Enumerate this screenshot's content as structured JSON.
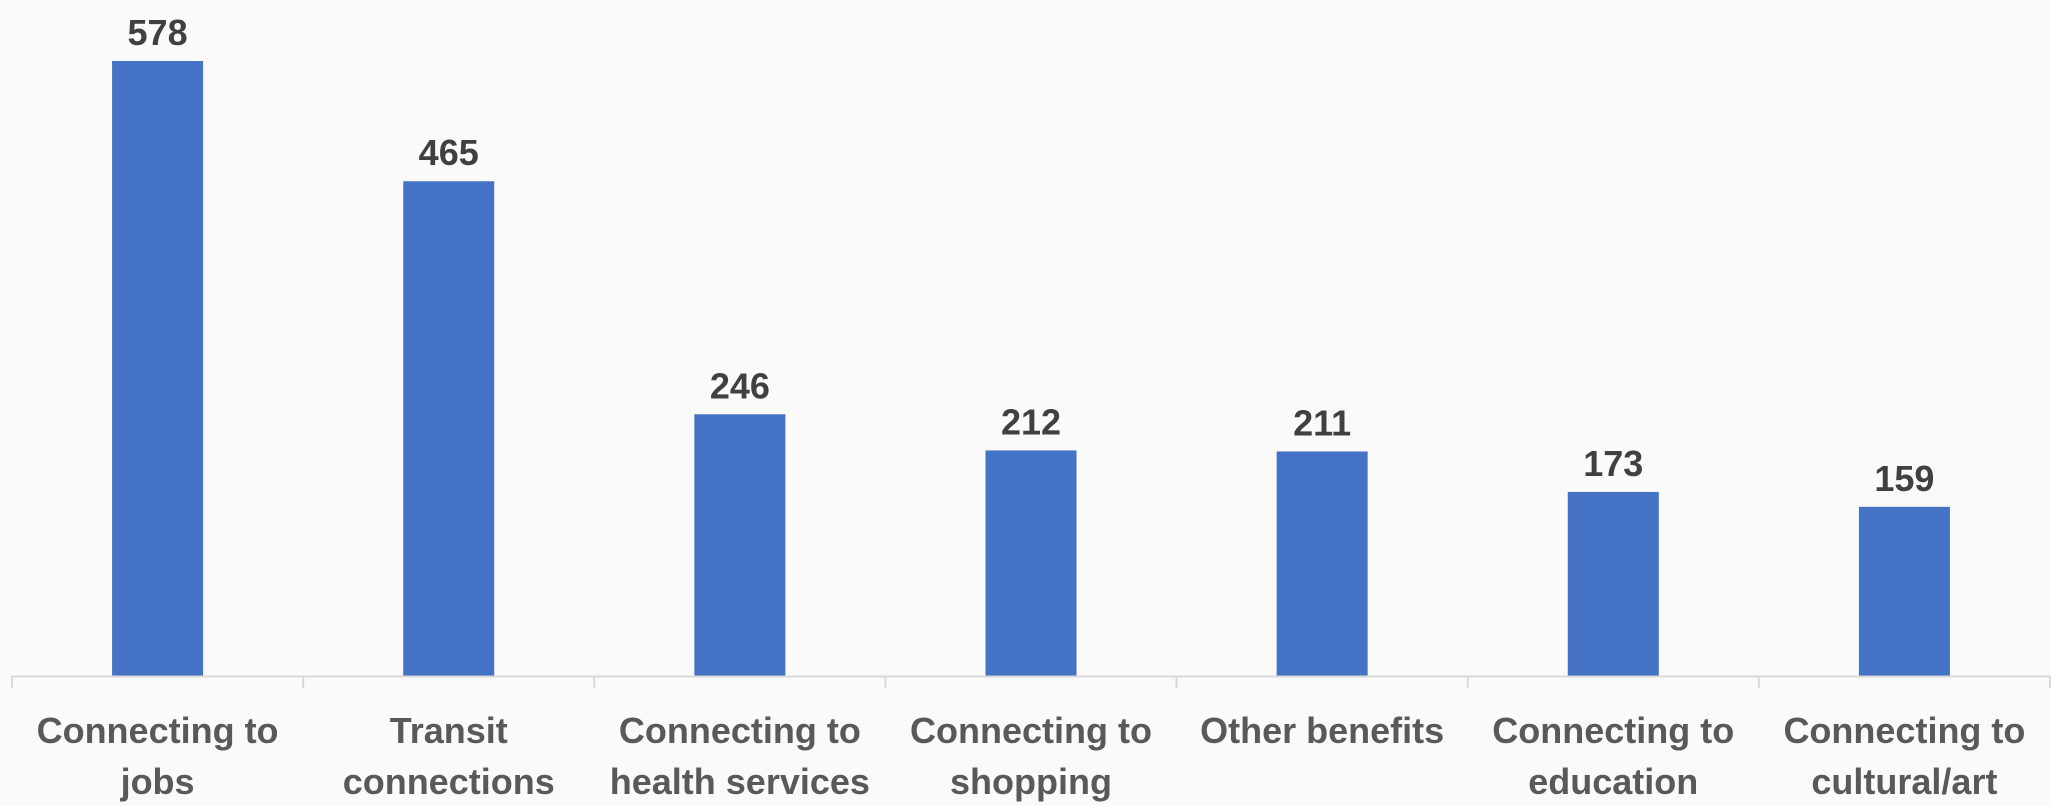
{
  "chart_data": {
    "type": "bar",
    "title": "",
    "xlabel": "",
    "ylabel": "",
    "ylim": [
      0,
      600
    ],
    "grid": false,
    "legend": "none",
    "bar_color": "#4472c4",
    "axis_color": "#d9d9d9",
    "categories": [
      [
        "Connecting to",
        "jobs"
      ],
      [
        "Transit",
        "connections"
      ],
      [
        "Connecting to",
        "health services"
      ],
      [
        "Connecting to",
        "shopping"
      ],
      [
        "Other benefits"
      ],
      [
        "Connecting to",
        "education"
      ],
      [
        "Connecting to",
        "cultural/art"
      ]
    ],
    "values": [
      578,
      465,
      246,
      212,
      211,
      173,
      159
    ],
    "data_labels": [
      "578",
      "465",
      "246",
      "212",
      "211",
      "173",
      "159"
    ]
  }
}
